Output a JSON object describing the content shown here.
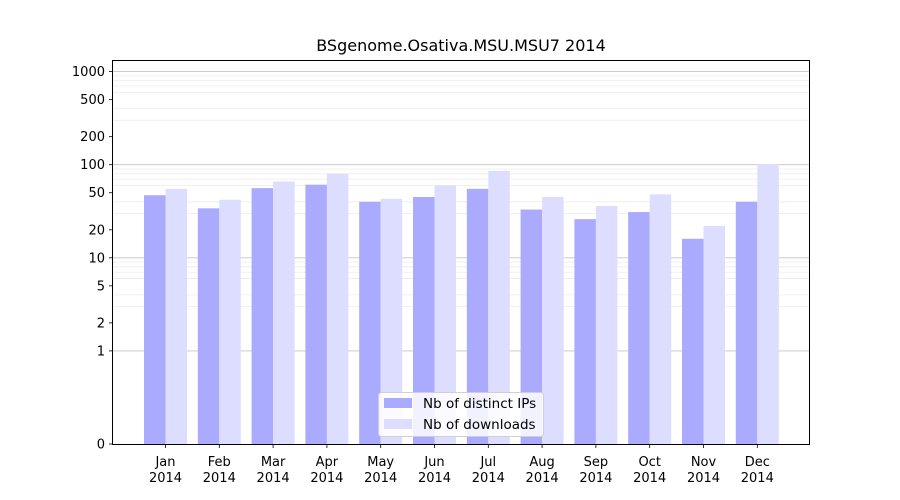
{
  "chart_data": {
    "type": "bar",
    "title": "BSgenome.Osativa.MSU.MSU7 2014",
    "xlabel": "",
    "ylabel": "",
    "y_scale": "symlog",
    "ylim": [
      0,
      1300
    ],
    "y_ticks": [
      0,
      1,
      2,
      5,
      10,
      20,
      50,
      100,
      200,
      500,
      1000
    ],
    "grid": true,
    "legend_position": "bottom-center",
    "categories": [
      "Jan",
      "Feb",
      "Mar",
      "Apr",
      "May",
      "Jun",
      "Jul",
      "Aug",
      "Sep",
      "Oct",
      "Nov",
      "Dec"
    ],
    "category_sublabels": [
      "2014",
      "2014",
      "2014",
      "2014",
      "2014",
      "2014",
      "2014",
      "2014",
      "2014",
      "2014",
      "2014",
      "2014"
    ],
    "series": [
      {
        "name": "Nb of distinct IPs",
        "color": "#aaaaff",
        "values": [
          47,
          34,
          56,
          61,
          40,
          45,
          55,
          33,
          26,
          31,
          16,
          40
        ]
      },
      {
        "name": "Nb of downloads",
        "color": "#ddddff",
        "values": [
          55,
          42,
          66,
          80,
          43,
          60,
          86,
          45,
          36,
          48,
          22,
          101
        ]
      }
    ]
  }
}
